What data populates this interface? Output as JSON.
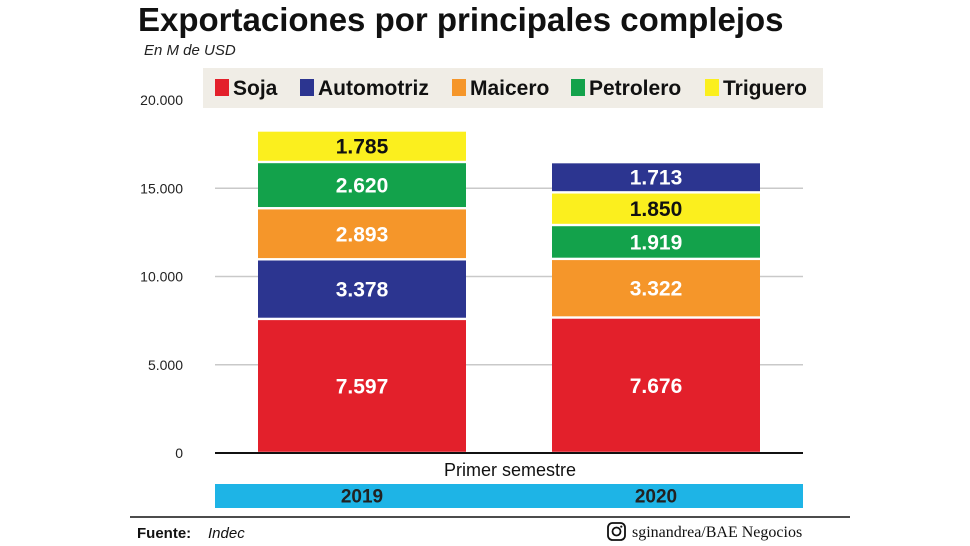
{
  "title": "Exportaciones por principales complejos",
  "subtitle": "En M de USD",
  "footer": {
    "source_label": "Fuente:",
    "source_value": "Indec",
    "credit": "sginandrea/BAE Negocios",
    "credit_icon": "instagram-icon"
  },
  "colors": {
    "Soja": "#e3202b",
    "Automotriz": "#2c3590",
    "Maicero": "#f5962a",
    "Petrolero": "#13a24b",
    "Triguero": "#fbef1e",
    "year_band": "#1eb4e6",
    "legend_bg": "#f0ede6"
  },
  "chart_data": {
    "type": "bar",
    "stacked": true,
    "xlabel": "Primer semestre",
    "ylabel": "",
    "ylim": [
      0,
      20000
    ],
    "yticks": [
      0,
      5000,
      10000,
      15000,
      20000
    ],
    "ytick_labels": [
      "0",
      "5.000",
      "10.000",
      "15.000",
      "20.000"
    ],
    "grid": true,
    "legend_position": "top",
    "categories": [
      "2019",
      "2020"
    ],
    "legend": [
      "Soja",
      "Automotriz",
      "Maicero",
      "Petrolero",
      "Triguero"
    ],
    "stacks": [
      {
        "category": "2019",
        "segments": [
          {
            "name": "Soja",
            "value": 7597,
            "label": "7.597"
          },
          {
            "name": "Automotriz",
            "value": 3378,
            "label": "3.378"
          },
          {
            "name": "Maicero",
            "value": 2893,
            "label": "2.893"
          },
          {
            "name": "Petrolero",
            "value": 2620,
            "label": "2.620"
          },
          {
            "name": "Triguero",
            "value": 1785,
            "label": "1.785"
          }
        ]
      },
      {
        "category": "2020",
        "segments": [
          {
            "name": "Soja",
            "value": 7676,
            "label": "7.676"
          },
          {
            "name": "Maicero",
            "value": 3322,
            "label": "3.322"
          },
          {
            "name": "Petrolero",
            "value": 1919,
            "label": "1.919"
          },
          {
            "name": "Triguero",
            "value": 1850,
            "label": "1.850"
          },
          {
            "name": "Automotriz",
            "value": 1713,
            "label": "1.713"
          }
        ]
      }
    ]
  }
}
